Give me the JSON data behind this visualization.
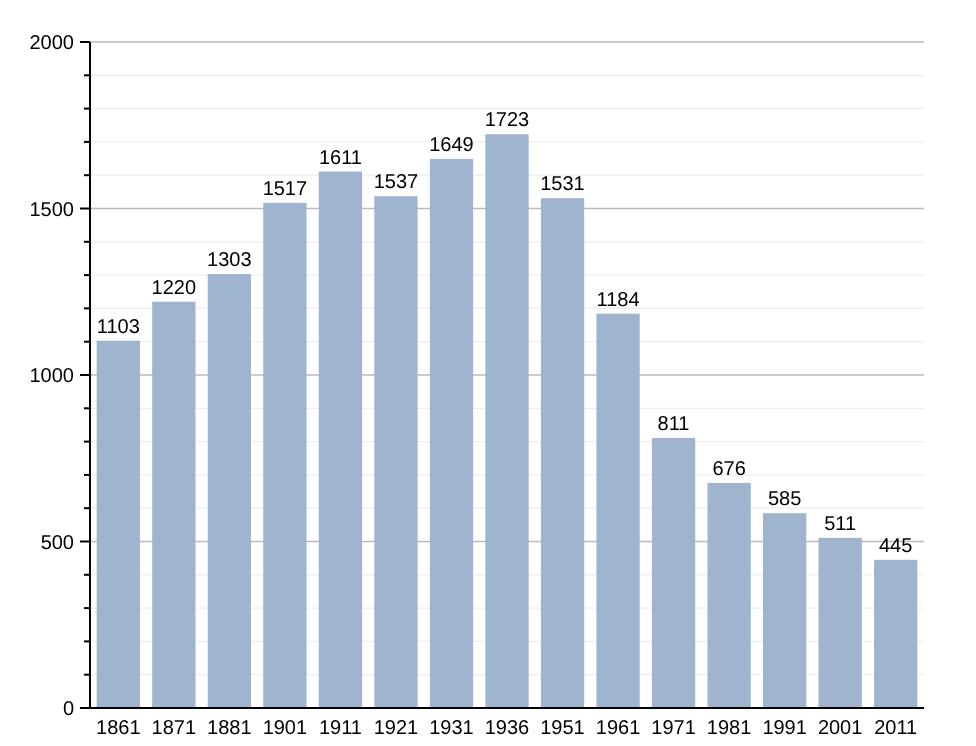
{
  "chart_data": {
    "type": "bar",
    "categories": [
      "1861",
      "1871",
      "1881",
      "1901",
      "1911",
      "1921",
      "1931",
      "1936",
      "1951",
      "1961",
      "1971",
      "1981",
      "1991",
      "2001",
      "2011"
    ],
    "values": [
      1103,
      1220,
      1303,
      1517,
      1611,
      1537,
      1649,
      1723,
      1531,
      1184,
      811,
      676,
      585,
      511,
      445
    ],
    "color": "#9fb5cf",
    "ylim": [
      0,
      2000
    ],
    "yticks": [
      0,
      {
        "value": 100,
        "label": null
      },
      {
        "value": 200,
        "label": null
      },
      {
        "value": 300,
        "label": null
      },
      {
        "value": 400,
        "label": null
      },
      500,
      {
        "value": 600,
        "label": null
      },
      {
        "value": 700,
        "label": null
      },
      {
        "value": 800,
        "label": null
      },
      {
        "value": 900,
        "label": null
      },
      1000,
      {
        "value": 1100,
        "label": null
      },
      {
        "value": 1200,
        "label": null
      },
      {
        "value": 1300,
        "label": null
      },
      {
        "value": 1400,
        "label": null
      },
      1500,
      {
        "value": 1600,
        "label": null
      },
      {
        "value": 1700,
        "label": null
      },
      {
        "value": 1800,
        "label": null
      },
      {
        "value": 1900,
        "label": null
      },
      2000
    ],
    "grid": "y",
    "data_labels": true
  }
}
